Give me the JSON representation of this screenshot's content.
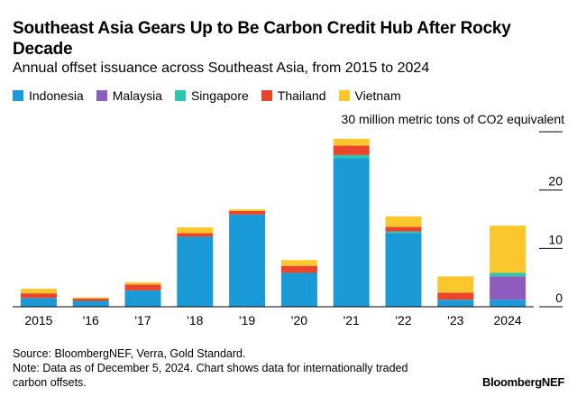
{
  "header": {
    "title": "Southeast Asia Gears Up to Be Carbon Credit Hub After Rocky Decade",
    "subtitle": "Annual offset issuance across Southeast Asia, from 2015 to 2024"
  },
  "footer": {
    "source": "Source: BloombergNEF, Verra, Gold Standard.",
    "note": "Note: Data as of December 5, 2024. Chart shows data for internationally traded carbon offsets.",
    "brand": "BloombergNEF"
  },
  "chart_data": {
    "type": "bar",
    "stacked": true,
    "title": "Southeast Asia Gears Up to Be Carbon Credit Hub After Rocky Decade",
    "subtitle": "Annual offset issuance across Southeast Asia, from 2015 to 2024",
    "unit_label": "30 million metric tons of CO2 equivalent",
    "categories": [
      "2015",
      "'16",
      "'17",
      "'18",
      "'19",
      "'20",
      "'21",
      "'22",
      "'23",
      "2024"
    ],
    "ylim": [
      0,
      30
    ],
    "yticks": [
      0,
      10,
      20,
      30
    ],
    "ytick_labels": [
      "0",
      "10",
      "20",
      ""
    ],
    "grid": true,
    "legend_position": "top-left",
    "series": [
      {
        "name": "Indonesia",
        "color": "#1a9bd7",
        "values": [
          1.5,
          1.0,
          2.8,
          12.0,
          15.8,
          5.8,
          25.5,
          12.6,
          1.2,
          1.2
        ]
      },
      {
        "name": "Malaysia",
        "color": "#8e5bbf",
        "values": [
          0,
          0,
          0,
          0,
          0,
          0,
          0,
          0,
          0,
          4.0
        ]
      },
      {
        "name": "Singapore",
        "color": "#2cc6b0",
        "values": [
          0,
          0,
          0,
          0,
          0,
          0,
          0.5,
          0.3,
          0,
          0.6
        ]
      },
      {
        "name": "Thailand",
        "color": "#e8452c",
        "values": [
          0.8,
          0.4,
          1.0,
          0.6,
          0.6,
          1.2,
          1.6,
          0.8,
          1.2,
          0
        ]
      },
      {
        "name": "Vietnam",
        "color": "#fcc72c",
        "values": [
          0.8,
          0.2,
          0.4,
          1.0,
          0.3,
          1.0,
          1.2,
          1.8,
          2.8,
          8.1
        ]
      }
    ]
  }
}
